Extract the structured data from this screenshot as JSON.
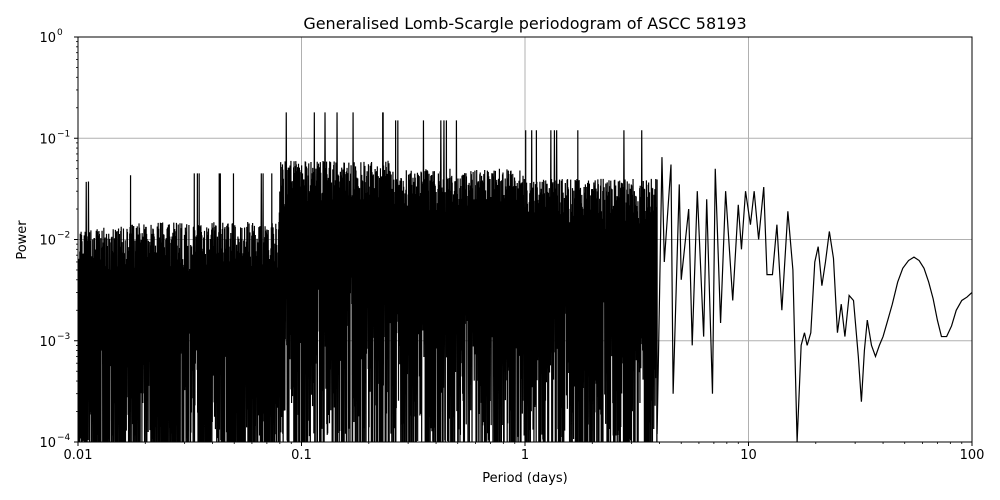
{
  "chart_data": {
    "type": "line",
    "title": "Generalised Lomb-Scargle periodogram of ASCC 58193",
    "xlabel": "Period (days)",
    "ylabel": "Power",
    "xscale": "log",
    "yscale": "log",
    "xlim": [
      0.01,
      100
    ],
    "ylim": [
      0.0001,
      1
    ],
    "grid": true,
    "line_color": "#000000",
    "x_ticks": [
      {
        "value": 0.01,
        "label": "0.01"
      },
      {
        "value": 0.1,
        "label": "0.1"
      },
      {
        "value": 1,
        "label": "1"
      },
      {
        "value": 10,
        "label": "10"
      },
      {
        "value": 100,
        "label": "100"
      }
    ],
    "y_ticks": [
      {
        "value": 0.0001,
        "base": "10",
        "exp": "−4"
      },
      {
        "value": 0.001,
        "base": "10",
        "exp": "−3"
      },
      {
        "value": 0.01,
        "base": "10",
        "exp": "−2"
      },
      {
        "value": 0.1,
        "base": "10",
        "exp": "−1"
      },
      {
        "value": 1,
        "base": "10",
        "exp": "0"
      }
    ],
    "series": [
      {
        "values_note_free": true,
        "x": [
          3.9,
          4.1,
          4.2,
          4.5,
          4.6,
          4.9,
          5.0,
          5.4,
          5.6,
          5.9,
          6.3,
          6.5,
          6.9,
          7.1,
          7.5,
          7.9,
          8.5,
          9.0,
          9.3,
          9.7,
          10.2,
          10.6,
          11.1,
          11.7,
          12.1,
          12.8,
          13.4,
          14.1,
          15.0,
          15.8,
          16.5,
          17.2,
          17.8,
          18.3,
          19.0,
          19.8,
          20.5,
          21.3,
          22.1,
          23.0,
          24.0,
          25.0,
          26.0,
          27.0,
          28.2,
          29.5,
          31.0,
          32.0,
          33.0,
          34.0,
          35.5,
          37.0,
          38.5,
          40.0,
          42.0,
          44.0,
          46.5,
          49.0,
          52.0,
          55.0,
          58.0,
          61.0,
          64.0,
          67.0,
          70.0,
          73.0,
          77.0,
          81.0,
          85.0,
          90.0,
          95.0,
          100.0
        ],
        "y": [
          0.00012,
          0.065,
          0.006,
          0.055,
          0.0003,
          0.035,
          0.004,
          0.02,
          0.0009,
          0.03,
          0.0011,
          0.025,
          0.0003,
          0.05,
          0.0015,
          0.03,
          0.0025,
          0.022,
          0.008,
          0.03,
          0.014,
          0.03,
          0.01,
          0.033,
          0.0045,
          0.0045,
          0.014,
          0.002,
          0.019,
          0.005,
          0.0001,
          0.0009,
          0.0012,
          0.0009,
          0.0012,
          0.006,
          0.0085,
          0.0035,
          0.006,
          0.012,
          0.0065,
          0.0012,
          0.0023,
          0.0011,
          0.0028,
          0.0025,
          0.0007,
          0.00025,
          0.0008,
          0.0016,
          0.0009,
          0.0007,
          0.0009,
          0.0011,
          0.0016,
          0.0023,
          0.0038,
          0.0052,
          0.0062,
          0.0067,
          0.0062,
          0.0052,
          0.0038,
          0.0026,
          0.0016,
          0.0011,
          0.0011,
          0.0014,
          0.002,
          0.0025,
          0.0027,
          0.003
        ]
      }
    ]
  }
}
